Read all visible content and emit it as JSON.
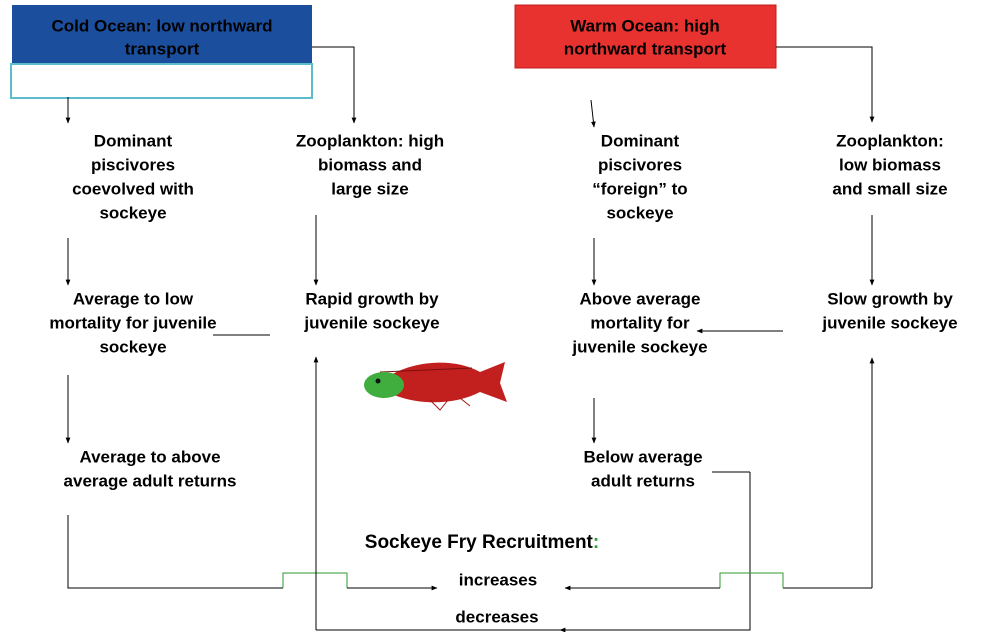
{
  "cold_header": {
    "lines": [
      "Cold Ocean: low northward",
      "transport"
    ]
  },
  "warm_header": {
    "lines": [
      "Warm Ocean: high",
      "northward transport"
    ]
  },
  "nodes": [
    {
      "lines": [
        "Dominant",
        "piscivores",
        "coevolved with",
        "sockeye"
      ]
    },
    {
      "lines": [
        "Zooplankton: high",
        "biomass and",
        "large size"
      ]
    },
    {
      "lines": [
        "Dominant",
        "piscivores",
        "“foreign” to",
        "sockeye"
      ]
    },
    {
      "lines": [
        "Zooplankton:",
        "low biomass",
        "and small size"
      ]
    },
    {
      "lines": [
        "Average to low",
        "mortality for juvenile",
        "sockeye"
      ]
    },
    {
      "lines": [
        "Rapid growth by",
        "juvenile sockeye"
      ]
    },
    {
      "lines": [
        "Above average",
        "mortality for",
        "juvenile sockeye"
      ]
    },
    {
      "lines": [
        "Slow growth by",
        "juvenile sockeye"
      ]
    },
    {
      "lines": [
        "Average to above",
        "average adult returns"
      ]
    },
    {
      "lines": [
        "Below average",
        "adult returns"
      ]
    }
  ],
  "recruitment": {
    "label": "Sockeye Fry Recruitment",
    "colon": ":"
  },
  "outcomes": {
    "increases": "increases",
    "decreases": "decreases"
  }
}
